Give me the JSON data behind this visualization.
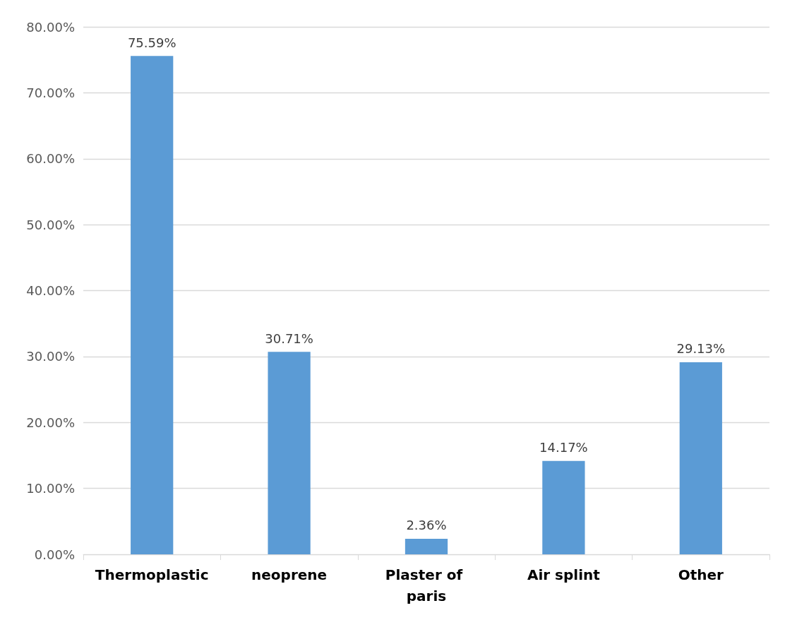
{
  "chart_data": {
    "type": "bar",
    "categories": [
      "Thermoplastic",
      "neoprene",
      "Plaster of paris",
      "Air splint",
      "Other"
    ],
    "values": [
      75.59,
      30.71,
      2.36,
      14.17,
      29.13
    ],
    "value_labels": [
      "75.59%",
      "30.71%",
      "2.36%",
      "14.17%",
      "29.13%"
    ],
    "color": "#5b9bd5",
    "ylim": [
      0,
      80
    ],
    "yticks": [
      {
        "value": 0,
        "label": "0.00%"
      },
      {
        "value": 10,
        "label": "10.00%"
      },
      {
        "value": 20,
        "label": "20.00%"
      },
      {
        "value": 30,
        "label": "30.00%"
      },
      {
        "value": 40,
        "label": "40.00%"
      },
      {
        "value": 50,
        "label": "50.00%"
      },
      {
        "value": 60,
        "label": "60.00%"
      },
      {
        "value": 70,
        "label": "70.00%"
      },
      {
        "value": 80,
        "label": "80.00%"
      }
    ],
    "grid": "y"
  }
}
